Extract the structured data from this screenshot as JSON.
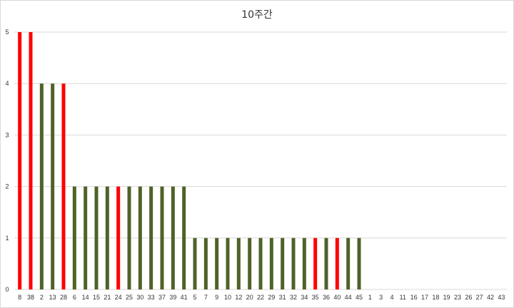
{
  "chart_data": {
    "type": "bar",
    "title": "10주간",
    "xlabel": "",
    "ylabel": "",
    "ylim": [
      0,
      5
    ],
    "yticks": [
      0,
      1,
      2,
      3,
      4,
      5
    ],
    "grid": true,
    "legend": "none",
    "colors": {
      "default": "#4f6228",
      "highlight": "#ff0000"
    },
    "categories": [
      "8",
      "38",
      "2",
      "13",
      "28",
      "6",
      "14",
      "15",
      "21",
      "24",
      "25",
      "30",
      "33",
      "37",
      "39",
      "41",
      "5",
      "7",
      "9",
      "10",
      "12",
      "20",
      "22",
      "29",
      "31",
      "32",
      "34",
      "35",
      "36",
      "40",
      "44",
      "45",
      "1",
      "3",
      "4",
      "11",
      "16",
      "17",
      "18",
      "19",
      "23",
      "26",
      "27",
      "42",
      "43"
    ],
    "values": [
      5,
      5,
      4,
      4,
      4,
      2,
      2,
      2,
      2,
      2,
      2,
      2,
      2,
      2,
      2,
      2,
      1,
      1,
      1,
      1,
      1,
      1,
      1,
      1,
      1,
      1,
      1,
      1,
      1,
      1,
      1,
      1,
      0,
      0,
      0,
      0,
      0,
      0,
      0,
      0,
      0,
      0,
      0,
      0,
      0
    ],
    "highlighted": [
      "8",
      "38",
      "28",
      "24",
      "35",
      "40"
    ]
  }
}
